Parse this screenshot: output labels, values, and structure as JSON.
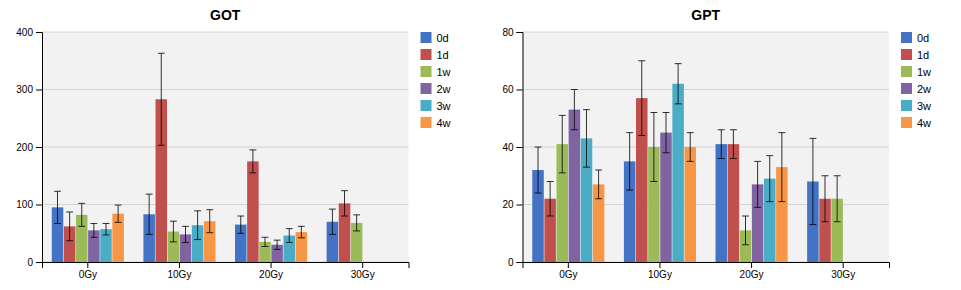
{
  "chart_data": [
    {
      "type": "bar",
      "title": "GOT",
      "categories": [
        "0Gy",
        "10Gy",
        "20Gy",
        "30Gy"
      ],
      "series": [
        {
          "name": "0d",
          "color": "#4472C4",
          "values": [
            95,
            83,
            65,
            70
          ],
          "errors": [
            28,
            35,
            15,
            22
          ]
        },
        {
          "name": "1d",
          "color": "#C0504D",
          "values": [
            62,
            283,
            175,
            102
          ],
          "errors": [
            25,
            80,
            20,
            22
          ]
        },
        {
          "name": "1w",
          "color": "#9BBB59",
          "values": [
            82,
            53,
            35,
            68
          ],
          "errors": [
            20,
            18,
            8,
            14
          ]
        },
        {
          "name": "2w",
          "color": "#8064A2",
          "values": [
            55,
            48,
            30,
            null
          ],
          "errors": [
            12,
            14,
            8,
            null
          ]
        },
        {
          "name": "3w",
          "color": "#4BACC6",
          "values": [
            57,
            64,
            46,
            null
          ],
          "errors": [
            10,
            25,
            12,
            null
          ]
        },
        {
          "name": "4w",
          "color": "#F79646",
          "values": [
            84,
            71,
            52,
            null
          ],
          "errors": [
            15,
            20,
            10,
            null
          ]
        }
      ],
      "ylim": [
        0,
        400
      ],
      "yticks": [
        0,
        100,
        200,
        300,
        400
      ],
      "grid": true,
      "legend": "right"
    },
    {
      "type": "bar",
      "title": "GPT",
      "categories": [
        "0Gy",
        "10Gy",
        "20Gy",
        "30Gy"
      ],
      "series": [
        {
          "name": "0d",
          "color": "#4472C4",
          "values": [
            32,
            35,
            41,
            28
          ],
          "errors": [
            8,
            10,
            5,
            15
          ]
        },
        {
          "name": "1d",
          "color": "#C0504D",
          "values": [
            22,
            57,
            41,
            22
          ],
          "errors": [
            6,
            13,
            5,
            8
          ]
        },
        {
          "name": "1w",
          "color": "#9BBB59",
          "values": [
            41,
            40,
            11,
            22
          ],
          "errors": [
            10,
            12,
            5,
            8
          ]
        },
        {
          "name": "2w",
          "color": "#8064A2",
          "values": [
            53,
            45,
            27,
            null
          ],
          "errors": [
            7,
            7,
            8,
            null
          ]
        },
        {
          "name": "3w",
          "color": "#4BACC6",
          "values": [
            43,
            62,
            29,
            null
          ],
          "errors": [
            10,
            7,
            8,
            null
          ]
        },
        {
          "name": "4w",
          "color": "#F79646",
          "values": [
            27,
            40,
            33,
            null
          ],
          "errors": [
            5,
            5,
            12,
            null
          ]
        }
      ],
      "ylim": [
        0,
        80
      ],
      "yticks": [
        0,
        20,
        40,
        60,
        80
      ],
      "grid": true,
      "legend": "right"
    }
  ]
}
